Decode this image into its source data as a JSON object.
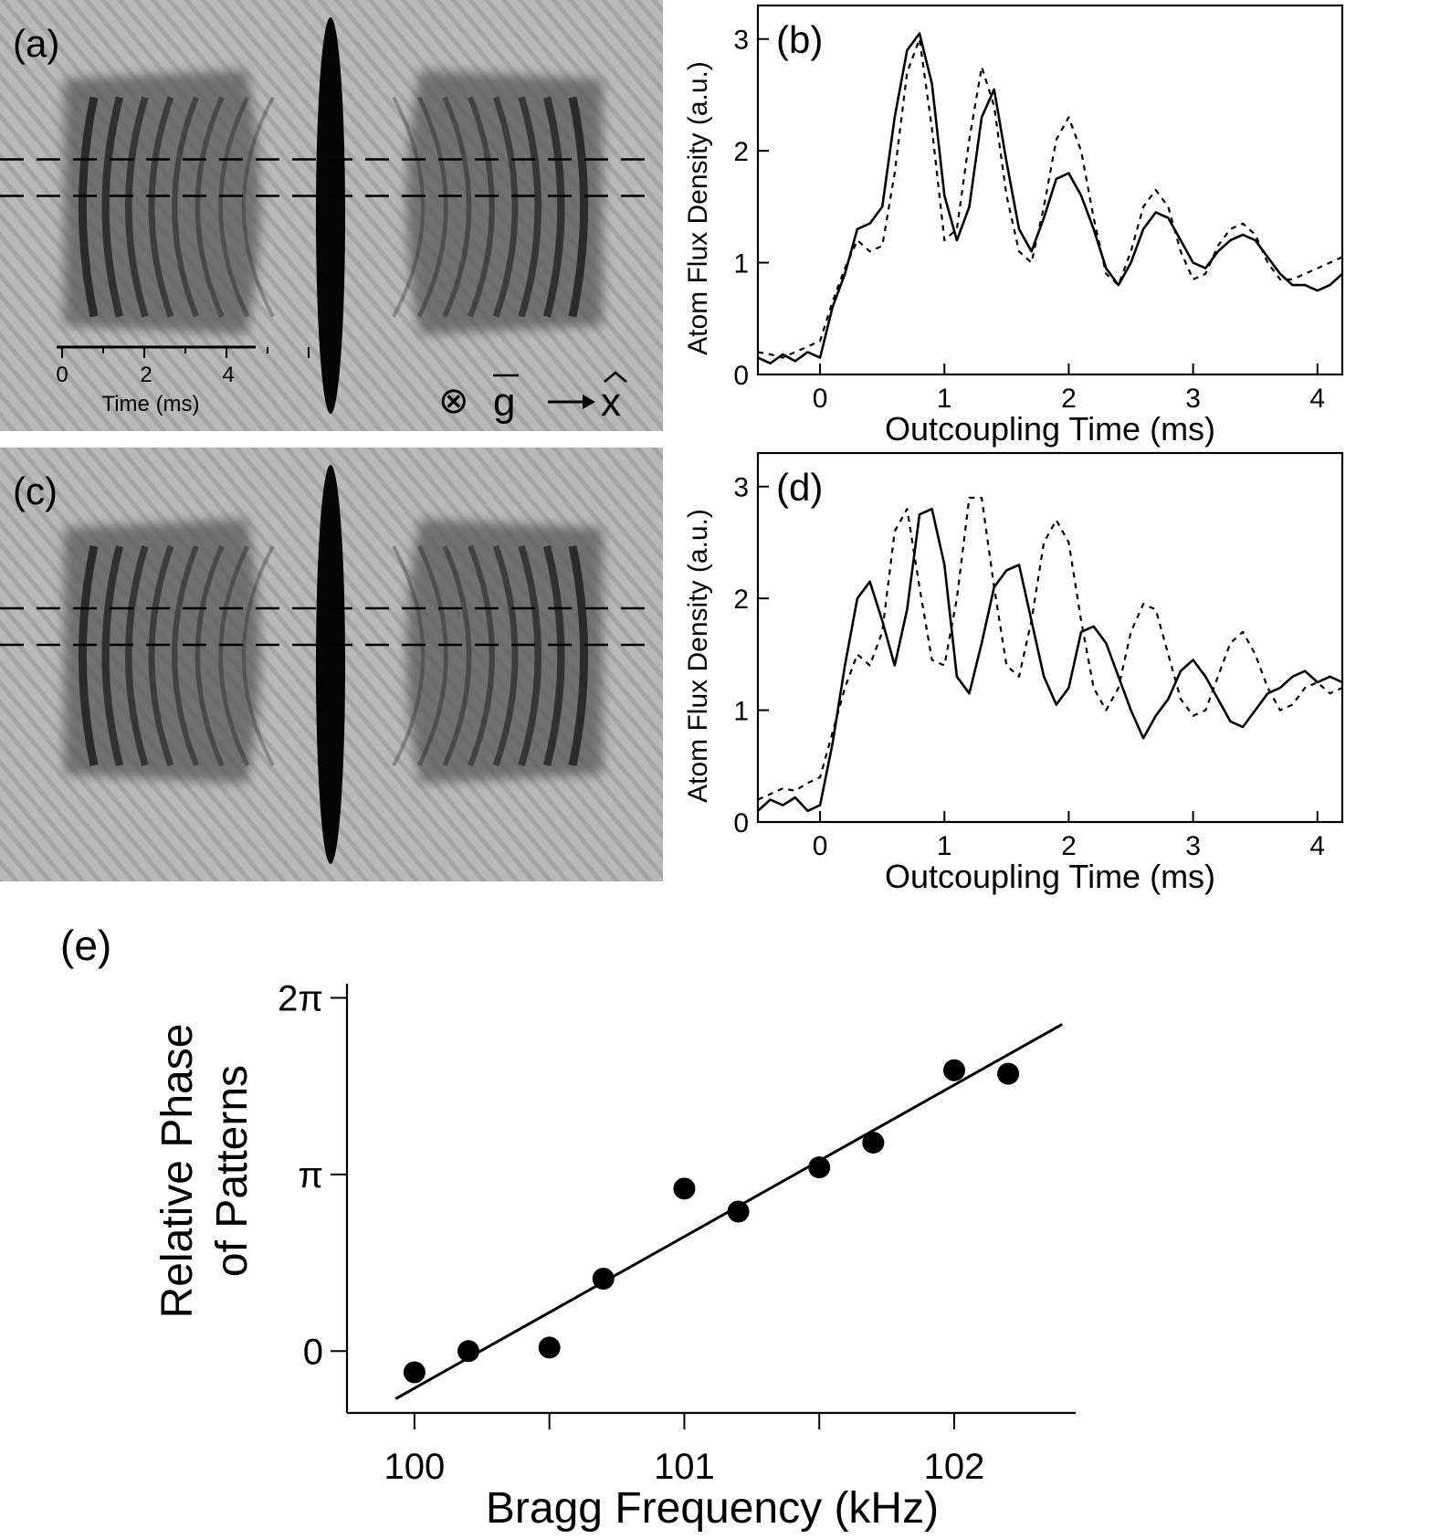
{
  "images": {
    "a": {
      "label": "(a)",
      "scale_ticks": [
        "0",
        "2",
        "4"
      ],
      "scale_label": "Time (ms)",
      "gravity_symbol": "⊗",
      "gravity_vec": "g",
      "x_hat": "x"
    },
    "c": {
      "label": "(c)"
    }
  },
  "chart_data": [
    {
      "id": "b",
      "type": "line",
      "panel_label": "(b)",
      "xlabel": "Outcoupling Time (ms)",
      "ylabel": "Atom Flux Density (a.u.)",
      "xlim": [
        -0.5,
        4.2
      ],
      "ylim": [
        0,
        3.3
      ],
      "xticks": [
        0,
        1,
        2,
        3,
        4
      ],
      "xtick_labels": [
        "0",
        "1",
        "2",
        "3",
        "4"
      ],
      "yticks": [
        0,
        1,
        2,
        3
      ],
      "ytick_labels": [
        "0",
        "1",
        "2",
        "3"
      ],
      "series": [
        {
          "style": "solid",
          "x": [
            -0.5,
            -0.4,
            -0.3,
            -0.2,
            -0.1,
            0,
            0.1,
            0.2,
            0.3,
            0.4,
            0.5,
            0.6,
            0.7,
            0.8,
            0.9,
            1.0,
            1.1,
            1.2,
            1.3,
            1.4,
            1.5,
            1.6,
            1.7,
            1.8,
            1.9,
            2.0,
            2.1,
            2.2,
            2.3,
            2.4,
            2.5,
            2.6,
            2.7,
            2.8,
            2.9,
            3.0,
            3.1,
            3.2,
            3.3,
            3.4,
            3.5,
            3.6,
            3.7,
            3.8,
            3.9,
            4.0,
            4.1,
            4.2
          ],
          "y": [
            0.15,
            0.1,
            0.18,
            0.12,
            0.2,
            0.15,
            0.6,
            0.9,
            1.3,
            1.35,
            1.5,
            2.3,
            2.9,
            3.05,
            2.6,
            1.6,
            1.2,
            1.5,
            2.3,
            2.55,
            1.9,
            1.3,
            1.1,
            1.4,
            1.75,
            1.8,
            1.6,
            1.3,
            0.95,
            0.8,
            1.0,
            1.3,
            1.45,
            1.4,
            1.2,
            1.0,
            0.95,
            1.1,
            1.2,
            1.25,
            1.2,
            1.05,
            0.9,
            0.8,
            0.8,
            0.75,
            0.8,
            0.9
          ]
        },
        {
          "style": "dashed",
          "x": [
            -0.5,
            -0.4,
            -0.3,
            -0.2,
            -0.1,
            0,
            0.1,
            0.2,
            0.3,
            0.4,
            0.5,
            0.6,
            0.7,
            0.8,
            0.9,
            1.0,
            1.1,
            1.2,
            1.3,
            1.4,
            1.5,
            1.6,
            1.7,
            1.8,
            1.9,
            2.0,
            2.1,
            2.2,
            2.3,
            2.4,
            2.5,
            2.6,
            2.7,
            2.8,
            2.9,
            3.0,
            3.1,
            3.2,
            3.3,
            3.4,
            3.5,
            3.6,
            3.7,
            3.8,
            3.9,
            4.0,
            4.1,
            4.2
          ],
          "y": [
            0.2,
            0.18,
            0.15,
            0.2,
            0.25,
            0.3,
            0.65,
            0.95,
            1.2,
            1.1,
            1.15,
            1.8,
            2.7,
            3.0,
            2.2,
            1.2,
            1.3,
            2.1,
            2.75,
            2.4,
            1.6,
            1.1,
            1.0,
            1.5,
            2.1,
            2.3,
            2.0,
            1.4,
            0.9,
            0.8,
            1.1,
            1.5,
            1.65,
            1.5,
            1.1,
            0.85,
            0.9,
            1.15,
            1.3,
            1.35,
            1.25,
            1.0,
            0.85,
            0.85,
            0.9,
            0.95,
            1.0,
            1.05
          ]
        }
      ]
    },
    {
      "id": "d",
      "type": "line",
      "panel_label": "(d)",
      "xlabel": "Outcoupling Time (ms)",
      "ylabel": "Atom Flux Density (a.u.)",
      "xlim": [
        -0.5,
        4.2
      ],
      "ylim": [
        0,
        3.3
      ],
      "xticks": [
        0,
        1,
        2,
        3,
        4
      ],
      "xtick_labels": [
        "0",
        "1",
        "2",
        "3",
        "4"
      ],
      "yticks": [
        0,
        1,
        2,
        3
      ],
      "ytick_labels": [
        "0",
        "1",
        "2",
        "3"
      ],
      "series": [
        {
          "style": "solid",
          "x": [
            -0.5,
            -0.4,
            -0.3,
            -0.2,
            -0.1,
            0,
            0.1,
            0.2,
            0.3,
            0.4,
            0.5,
            0.6,
            0.7,
            0.8,
            0.9,
            1.0,
            1.1,
            1.2,
            1.3,
            1.4,
            1.5,
            1.6,
            1.7,
            1.8,
            1.9,
            2.0,
            2.1,
            2.2,
            2.3,
            2.4,
            2.5,
            2.6,
            2.7,
            2.8,
            2.9,
            3.0,
            3.1,
            3.2,
            3.3,
            3.4,
            3.5,
            3.6,
            3.7,
            3.8,
            3.9,
            4.0,
            4.1,
            4.2
          ],
          "y": [
            0.1,
            0.2,
            0.15,
            0.22,
            0.1,
            0.15,
            0.7,
            1.4,
            2.0,
            2.15,
            1.8,
            1.4,
            1.9,
            2.75,
            2.8,
            2.3,
            1.3,
            1.15,
            1.6,
            2.1,
            2.25,
            2.3,
            1.8,
            1.3,
            1.05,
            1.2,
            1.7,
            1.75,
            1.6,
            1.3,
            1.0,
            0.75,
            0.95,
            1.1,
            1.35,
            1.45,
            1.3,
            1.1,
            0.9,
            0.85,
            1.0,
            1.15,
            1.2,
            1.3,
            1.35,
            1.25,
            1.3,
            1.25
          ]
        },
        {
          "style": "dashed",
          "x": [
            -0.5,
            -0.4,
            -0.3,
            -0.2,
            -0.1,
            0,
            0.1,
            0.2,
            0.3,
            0.4,
            0.5,
            0.6,
            0.7,
            0.8,
            0.9,
            1.0,
            1.1,
            1.2,
            1.3,
            1.4,
            1.5,
            1.6,
            1.7,
            1.8,
            1.9,
            2.0,
            2.1,
            2.2,
            2.3,
            2.4,
            2.5,
            2.6,
            2.7,
            2.8,
            2.9,
            3.0,
            3.1,
            3.2,
            3.3,
            3.4,
            3.5,
            3.6,
            3.7,
            3.8,
            3.9,
            4.0,
            4.1,
            4.2
          ],
          "y": [
            0.2,
            0.25,
            0.3,
            0.28,
            0.35,
            0.4,
            0.8,
            1.2,
            1.5,
            1.4,
            1.7,
            2.6,
            2.8,
            2.1,
            1.45,
            1.4,
            2.0,
            2.9,
            2.9,
            2.1,
            1.4,
            1.3,
            1.8,
            2.5,
            2.7,
            2.5,
            1.8,
            1.2,
            1.0,
            1.2,
            1.7,
            1.95,
            1.9,
            1.5,
            1.1,
            0.95,
            1.0,
            1.3,
            1.6,
            1.7,
            1.5,
            1.2,
            1.0,
            1.05,
            1.2,
            1.25,
            1.15,
            1.2
          ]
        }
      ]
    },
    {
      "id": "e",
      "type": "scatter",
      "panel_label": "(e)",
      "xlabel": "Bragg Frequency (kHz)",
      "ylabel_lines": [
        "Relative Phase",
        "of Patterns"
      ],
      "xlim": [
        99.75,
        102.45
      ],
      "ylim": [
        -0.35,
        2.08
      ],
      "xticks": [
        100,
        100.5,
        101,
        101.5,
        102
      ],
      "xtick_labels": [
        "100",
        "",
        "101",
        "",
        "102"
      ],
      "yticks": [
        0,
        1,
        2
      ],
      "ytick_labels": [
        "0",
        "π",
        "2π"
      ],
      "points": {
        "x": [
          100.0,
          100.2,
          100.5,
          100.7,
          101.0,
          101.2,
          101.5,
          101.7,
          102.0,
          102.2
        ],
        "y": [
          -0.12,
          0.0,
          0.02,
          0.41,
          0.92,
          0.79,
          1.04,
          1.18,
          1.59,
          1.57
        ]
      },
      "fit_line": {
        "x": [
          99.93,
          102.4
        ],
        "y": [
          -0.27,
          1.85
        ]
      }
    }
  ]
}
